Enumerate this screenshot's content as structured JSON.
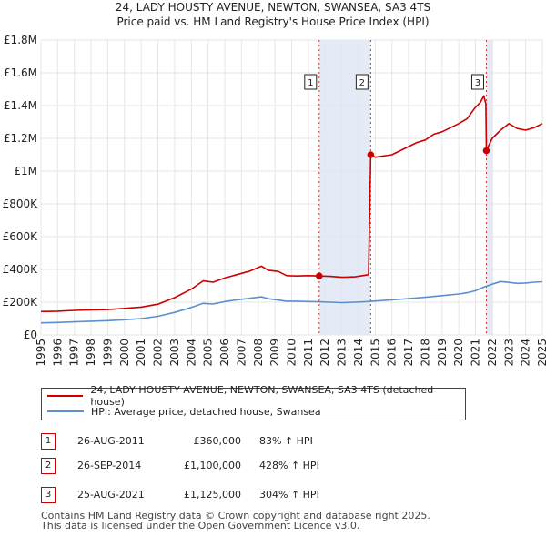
{
  "title_line1": "24, LADY HOUSTY AVENUE, NEWTON, SWANSEA, SA3 4TS",
  "title_line2": "Price paid vs. HM Land Registry's House Price Index (HPI)",
  "chart_data": {
    "type": "line",
    "title": "24, LADY HOUSTY AVENUE, NEWTON, SWANSEA, SA3 4TS",
    "subtitle": "Price paid vs. HM Land Registry's House Price Index (HPI)",
    "xlabel": "",
    "ylabel": "",
    "xlim": [
      1995,
      2025
    ],
    "ylim": [
      0,
      1800000
    ],
    "grid": true,
    "y_ticks": [
      {
        "value": 0,
        "label": "£0"
      },
      {
        "value": 200000,
        "label": "£200K"
      },
      {
        "value": 400000,
        "label": "£400K"
      },
      {
        "value": 600000,
        "label": "£600K"
      },
      {
        "value": 800000,
        "label": "£800K"
      },
      {
        "value": 1000000,
        "label": "£1M"
      },
      {
        "value": 1200000,
        "label": "£1.2M"
      },
      {
        "value": 1400000,
        "label": "£1.4M"
      },
      {
        "value": 1600000,
        "label": "£1.6M"
      },
      {
        "value": 1800000,
        "label": "£1.8M"
      }
    ],
    "x_ticks": [
      "1995",
      "1996",
      "1997",
      "1998",
      "1999",
      "2000",
      "2001",
      "2002",
      "2003",
      "2004",
      "2005",
      "2006",
      "2007",
      "2008",
      "2009",
      "2010",
      "2011",
      "2012",
      "2013",
      "2014",
      "2015",
      "2016",
      "2017",
      "2018",
      "2019",
      "2020",
      "2021",
      "2022",
      "2023",
      "2024",
      "2025"
    ],
    "shaded_periods": [
      {
        "from": 2011.65,
        "to": 2014.73
      },
      {
        "from": 2021.65,
        "to": 2022.05
      }
    ],
    "series": [
      {
        "name": "24, LADY HOUSTY AVENUE, NEWTON, SWANSEA, SA3 4TS (detached house)",
        "color": "#cc0000",
        "points": [
          [
            1995.0,
            143000
          ],
          [
            1996.0,
            145000
          ],
          [
            1997.0,
            150000
          ],
          [
            1998.0,
            153000
          ],
          [
            1999.0,
            155000
          ],
          [
            2000.0,
            162000
          ],
          [
            2001.0,
            170000
          ],
          [
            2002.0,
            188000
          ],
          [
            2003.0,
            228000
          ],
          [
            2004.0,
            280000
          ],
          [
            2004.7,
            330000
          ],
          [
            2005.3,
            322000
          ],
          [
            2006.0,
            348000
          ],
          [
            2006.7,
            368000
          ],
          [
            2007.5,
            390000
          ],
          [
            2008.2,
            420000
          ],
          [
            2008.6,
            395000
          ],
          [
            2009.2,
            388000
          ],
          [
            2009.7,
            362000
          ],
          [
            2010.3,
            360000
          ],
          [
            2011.0,
            362000
          ],
          [
            2011.65,
            360000
          ],
          [
            2012.3,
            358000
          ],
          [
            2013.0,
            352000
          ],
          [
            2013.8,
            355000
          ],
          [
            2014.6,
            368000
          ],
          [
            2014.73,
            1100000
          ],
          [
            2015.0,
            1085000
          ],
          [
            2016.0,
            1100000
          ],
          [
            2017.0,
            1150000
          ],
          [
            2017.5,
            1175000
          ],
          [
            2018.0,
            1190000
          ],
          [
            2018.5,
            1225000
          ],
          [
            2019.0,
            1240000
          ],
          [
            2019.5,
            1265000
          ],
          [
            2020.0,
            1290000
          ],
          [
            2020.5,
            1320000
          ],
          [
            2021.0,
            1390000
          ],
          [
            2021.3,
            1420000
          ],
          [
            2021.5,
            1460000
          ],
          [
            2021.62,
            1410000
          ],
          [
            2021.65,
            1125000
          ],
          [
            2022.0,
            1200000
          ],
          [
            2022.5,
            1250000
          ],
          [
            2023.0,
            1290000
          ],
          [
            2023.5,
            1260000
          ],
          [
            2024.0,
            1250000
          ],
          [
            2024.5,
            1265000
          ],
          [
            2025.0,
            1290000
          ]
        ]
      },
      {
        "name": "HPI: Average price, detached house, Swansea",
        "color": "#5b8fd0",
        "points": [
          [
            1995.0,
            74000
          ],
          [
            1996.0,
            76000
          ],
          [
            1997.0,
            80000
          ],
          [
            1998.0,
            84000
          ],
          [
            1999.0,
            87000
          ],
          [
            2000.0,
            93000
          ],
          [
            2001.0,
            100000
          ],
          [
            2002.0,
            114000
          ],
          [
            2003.0,
            138000
          ],
          [
            2004.0,
            168000
          ],
          [
            2004.7,
            193000
          ],
          [
            2005.3,
            189000
          ],
          [
            2006.0,
            204000
          ],
          [
            2006.7,
            214000
          ],
          [
            2007.5,
            224000
          ],
          [
            2008.2,
            233000
          ],
          [
            2008.6,
            221000
          ],
          [
            2009.2,
            213000
          ],
          [
            2009.7,
            206000
          ],
          [
            2010.3,
            206000
          ],
          [
            2011.0,
            204000
          ],
          [
            2011.65,
            202000
          ],
          [
            2012.3,
            200000
          ],
          [
            2013.0,
            197000
          ],
          [
            2013.8,
            200000
          ],
          [
            2014.6,
            204000
          ],
          [
            2015.0,
            207000
          ],
          [
            2016.0,
            214000
          ],
          [
            2017.0,
            222000
          ],
          [
            2018.0,
            230000
          ],
          [
            2019.0,
            240000
          ],
          [
            2020.0,
            250000
          ],
          [
            2020.5,
            258000
          ],
          [
            2021.0,
            270000
          ],
          [
            2021.5,
            292000
          ],
          [
            2022.0,
            310000
          ],
          [
            2022.5,
            326000
          ],
          [
            2023.0,
            321000
          ],
          [
            2023.5,
            315000
          ],
          [
            2024.0,
            317000
          ],
          [
            2024.5,
            322000
          ],
          [
            2025.0,
            325000
          ]
        ]
      }
    ],
    "annotations": [
      {
        "label": "1",
        "x": 2011.65,
        "y_marker": 360000
      },
      {
        "label": "2",
        "x": 2014.73,
        "y_marker": 1100000
      },
      {
        "label": "3",
        "x": 2021.65,
        "y_marker": 1125000
      }
    ]
  },
  "legend": {
    "items": [
      {
        "label": "24, LADY HOUSTY AVENUE, NEWTON, SWANSEA, SA3 4TS (detached house)",
        "color": "#cc0000"
      },
      {
        "label": "HPI: Average price, detached house, Swansea",
        "color": "#5b8fd0"
      }
    ]
  },
  "sales": [
    {
      "num": "1",
      "date": "26-AUG-2011",
      "price": "£360,000",
      "hpi": "83% ↑ HPI"
    },
    {
      "num": "2",
      "date": "26-SEP-2014",
      "price": "£1,100,000",
      "hpi": "428% ↑ HPI"
    },
    {
      "num": "3",
      "date": "25-AUG-2021",
      "price": "£1,125,000",
      "hpi": "304% ↑ HPI"
    }
  ],
  "footer_line1": "Contains HM Land Registry data © Crown copyright and database right 2025.",
  "footer_line2": "This data is licensed under the Open Government Licence v3.0."
}
